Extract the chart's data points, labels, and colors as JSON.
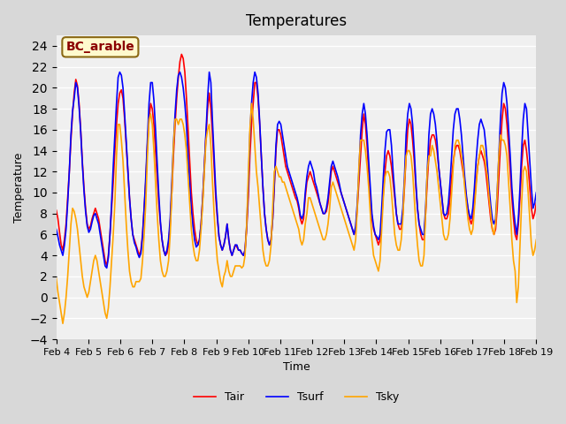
{
  "title": "Temperatures",
  "xlabel": "Time",
  "ylabel": "Temperature",
  "ylim": [
    -4,
    25
  ],
  "yticks": [
    -4,
    -2,
    0,
    2,
    4,
    6,
    8,
    10,
    12,
    14,
    16,
    18,
    20,
    22,
    24
  ],
  "annotation": "BC_arable",
  "legend_labels": [
    "Tair",
    "Tsurf",
    "Tsky"
  ],
  "line_colors": [
    "red",
    "blue",
    "orange"
  ],
  "bg_color": "#e8e8e8",
  "plot_bg": "#f0f0f0",
  "tair": [
    8.3,
    7.5,
    6.2,
    5.0,
    4.5,
    5.5,
    7.0,
    9.5,
    12.0,
    15.0,
    17.5,
    19.5,
    20.8,
    20.2,
    18.5,
    16.0,
    13.0,
    10.5,
    8.5,
    7.0,
    6.5,
    6.8,
    7.5,
    8.0,
    8.5,
    8.0,
    7.5,
    6.5,
    5.5,
    4.5,
    3.5,
    3.0,
    4.0,
    6.0,
    8.5,
    11.0,
    14.0,
    16.5,
    18.5,
    19.5,
    19.8,
    19.0,
    17.0,
    14.5,
    12.0,
    9.5,
    7.5,
    6.0,
    5.5,
    5.0,
    4.5,
    4.0,
    4.5,
    6.0,
    8.5,
    11.0,
    14.5,
    17.0,
    18.5,
    18.0,
    16.5,
    14.0,
    11.5,
    9.0,
    7.0,
    5.5,
    4.5,
    4.0,
    4.2,
    5.0,
    7.0,
    10.0,
    13.5,
    16.5,
    19.0,
    21.0,
    22.5,
    23.2,
    22.8,
    21.5,
    19.0,
    16.0,
    13.0,
    10.0,
    8.0,
    6.5,
    5.5,
    5.0,
    5.5,
    7.0,
    9.5,
    12.5,
    15.5,
    18.0,
    19.5,
    18.0,
    15.5,
    12.5,
    9.5,
    7.5,
    5.8,
    5.0,
    4.5,
    5.0,
    5.8,
    7.0,
    5.5,
    4.5,
    4.0,
    4.5,
    5.0,
    4.8,
    4.5,
    4.5,
    4.2,
    4.0,
    4.5,
    6.5,
    9.5,
    13.5,
    16.5,
    18.5,
    20.5,
    20.5,
    19.0,
    16.5,
    13.5,
    10.5,
    8.0,
    6.5,
    5.5,
    5.0,
    5.5,
    7.5,
    10.5,
    14.0,
    16.0,
    16.0,
    15.5,
    14.5,
    13.5,
    12.5,
    12.0,
    11.5,
    11.0,
    10.5,
    10.0,
    9.5,
    9.2,
    8.5,
    7.5,
    7.0,
    7.5,
    9.5,
    11.0,
    11.5,
    12.0,
    11.5,
    11.0,
    10.5,
    10.0,
    9.5,
    9.0,
    8.5,
    8.0,
    8.0,
    8.2,
    9.0,
    10.5,
    12.0,
    12.5,
    12.0,
    11.5,
    11.0,
    10.5,
    10.0,
    9.5,
    9.0,
    8.5,
    8.0,
    7.5,
    7.0,
    6.5,
    6.0,
    6.5,
    8.5,
    11.0,
    13.5,
    16.0,
    17.5,
    16.5,
    14.5,
    12.0,
    9.5,
    7.5,
    6.5,
    6.0,
    5.5,
    5.0,
    5.5,
    7.5,
    10.0,
    12.0,
    13.5,
    14.0,
    13.5,
    12.5,
    11.0,
    9.5,
    8.0,
    7.0,
    6.5,
    6.5,
    8.0,
    10.5,
    13.5,
    16.0,
    17.0,
    16.5,
    15.0,
    13.0,
    10.5,
    8.5,
    7.0,
    6.0,
    5.5,
    5.5,
    8.0,
    11.0,
    13.5,
    15.0,
    15.5,
    15.5,
    15.0,
    14.0,
    12.5,
    11.0,
    9.5,
    8.0,
    7.5,
    7.5,
    8.0,
    9.5,
    11.5,
    13.0,
    14.0,
    14.5,
    14.5,
    14.0,
    13.0,
    12.0,
    11.0,
    9.5,
    8.5,
    7.5,
    7.0,
    7.5,
    9.0,
    11.0,
    12.5,
    13.5,
    14.0,
    13.5,
    13.0,
    12.0,
    10.5,
    9.0,
    7.5,
    6.5,
    6.0,
    6.5,
    8.5,
    11.5,
    14.5,
    17.0,
    18.5,
    18.0,
    16.5,
    14.5,
    12.0,
    9.5,
    7.5,
    6.0,
    5.5,
    7.0,
    9.5,
    12.5,
    14.5,
    15.0,
    14.0,
    12.5,
    10.5,
    8.5,
    7.5,
    8.0,
    9.0
  ],
  "tsurf": [
    6.5,
    5.8,
    5.0,
    4.5,
    4.0,
    5.0,
    6.5,
    9.0,
    12.0,
    15.5,
    17.8,
    19.0,
    20.5,
    20.0,
    18.2,
    15.8,
    12.8,
    10.2,
    8.2,
    6.8,
    6.2,
    6.5,
    7.2,
    7.8,
    8.0,
    7.5,
    7.0,
    6.0,
    5.0,
    4.0,
    3.0,
    2.8,
    3.8,
    6.0,
    9.0,
    12.5,
    15.5,
    18.5,
    21.0,
    21.5,
    21.2,
    20.0,
    17.5,
    14.8,
    12.0,
    9.5,
    7.5,
    6.0,
    5.2,
    4.8,
    4.2,
    3.8,
    4.2,
    5.8,
    8.5,
    11.5,
    15.0,
    18.5,
    20.5,
    20.5,
    18.8,
    16.0,
    12.8,
    9.8,
    7.2,
    5.5,
    4.5,
    4.0,
    4.5,
    5.5,
    7.5,
    11.0,
    14.5,
    17.5,
    19.8,
    21.2,
    21.5,
    21.0,
    20.0,
    18.5,
    16.5,
    13.5,
    11.0,
    8.5,
    6.8,
    5.5,
    4.8,
    5.0,
    5.5,
    7.0,
    9.5,
    12.5,
    15.8,
    19.0,
    21.5,
    20.5,
    16.8,
    13.5,
    10.2,
    7.8,
    5.8,
    5.0,
    4.5,
    5.0,
    5.8,
    7.0,
    5.5,
    4.5,
    4.0,
    4.5,
    5.0,
    5.0,
    4.5,
    4.5,
    4.2,
    4.0,
    4.5,
    6.8,
    10.5,
    15.5,
    18.5,
    20.5,
    21.5,
    21.0,
    19.5,
    16.8,
    13.5,
    10.5,
    8.0,
    6.5,
    5.5,
    5.0,
    5.5,
    7.5,
    10.8,
    14.5,
    16.5,
    16.8,
    16.5,
    15.5,
    14.5,
    13.5,
    12.5,
    12.0,
    11.5,
    11.0,
    10.5,
    10.0,
    9.5,
    8.8,
    7.8,
    7.5,
    8.0,
    10.0,
    11.5,
    12.5,
    13.0,
    12.5,
    12.0,
    11.0,
    10.5,
    9.8,
    9.0,
    8.5,
    8.0,
    8.0,
    8.5,
    9.5,
    11.0,
    12.5,
    13.0,
    12.5,
    12.0,
    11.5,
    10.8,
    10.0,
    9.5,
    9.0,
    8.5,
    8.0,
    7.5,
    7.0,
    6.5,
    6.0,
    6.8,
    9.0,
    12.0,
    15.5,
    17.5,
    18.5,
    17.5,
    15.5,
    13.0,
    10.5,
    8.0,
    6.8,
    6.0,
    5.8,
    5.5,
    6.0,
    8.5,
    11.5,
    14.0,
    15.8,
    16.0,
    16.0,
    14.5,
    12.0,
    10.0,
    8.0,
    7.0,
    7.0,
    7.0,
    8.5,
    11.5,
    15.5,
    17.5,
    18.5,
    18.0,
    16.5,
    14.0,
    11.0,
    8.5,
    7.0,
    6.5,
    6.0,
    6.0,
    8.5,
    12.0,
    15.5,
    17.5,
    18.0,
    17.5,
    16.5,
    14.8,
    12.5,
    11.0,
    9.5,
    8.0,
    7.8,
    8.0,
    9.0,
    11.0,
    13.5,
    16.0,
    17.5,
    18.0,
    18.0,
    17.0,
    15.5,
    13.5,
    11.5,
    9.8,
    8.5,
    7.8,
    7.5,
    8.5,
    10.5,
    13.0,
    15.0,
    16.5,
    17.0,
    16.5,
    16.0,
    14.5,
    12.5,
    10.5,
    8.8,
    7.5,
    7.0,
    7.5,
    10.0,
    13.5,
    17.0,
    19.5,
    20.5,
    20.0,
    18.5,
    16.0,
    13.5,
    10.5,
    8.5,
    7.0,
    6.0,
    7.5,
    10.5,
    14.0,
    17.0,
    18.5,
    18.0,
    15.5,
    13.0,
    10.5,
    8.5,
    9.0,
    10.0
  ],
  "tsky": [
    1.8,
    0.5,
    -0.5,
    -1.5,
    -2.5,
    -1.5,
    0.0,
    2.0,
    4.5,
    7.0,
    8.5,
    8.2,
    7.5,
    6.5,
    5.0,
    3.5,
    2.0,
    1.0,
    0.5,
    0.0,
    0.5,
    1.5,
    2.5,
    3.5,
    4.0,
    3.5,
    2.5,
    1.5,
    0.5,
    -0.5,
    -1.5,
    -2.0,
    -1.0,
    1.0,
    3.5,
    6.0,
    9.0,
    13.5,
    16.5,
    16.5,
    15.0,
    13.0,
    10.0,
    7.0,
    4.5,
    2.5,
    1.5,
    1.0,
    1.0,
    1.5,
    1.5,
    1.5,
    1.8,
    3.5,
    6.0,
    9.0,
    13.5,
    17.0,
    17.5,
    16.5,
    14.0,
    11.0,
    8.0,
    5.5,
    3.5,
    2.5,
    2.0,
    2.0,
    2.5,
    3.5,
    6.0,
    10.0,
    14.5,
    17.0,
    17.0,
    16.5,
    17.0,
    17.0,
    16.5,
    15.5,
    14.0,
    11.5,
    9.0,
    6.5,
    5.0,
    4.0,
    3.5,
    3.5,
    4.5,
    6.5,
    9.0,
    12.0,
    15.0,
    16.0,
    16.5,
    14.5,
    11.0,
    8.0,
    5.5,
    3.5,
    2.5,
    1.5,
    1.0,
    2.0,
    2.5,
    3.5,
    2.5,
    2.0,
    2.0,
    2.5,
    3.0,
    3.0,
    3.0,
    3.0,
    2.8,
    3.0,
    4.0,
    7.0,
    11.5,
    16.0,
    18.5,
    17.0,
    14.5,
    12.0,
    10.5,
    8.5,
    6.5,
    4.5,
    3.5,
    3.0,
    3.0,
    3.5,
    5.0,
    8.5,
    12.0,
    12.5,
    12.0,
    11.5,
    11.5,
    11.0,
    11.0,
    10.5,
    10.0,
    9.5,
    9.0,
    8.5,
    8.0,
    7.5,
    7.0,
    6.5,
    5.5,
    5.0,
    5.5,
    7.0,
    8.0,
    9.5,
    9.5,
    9.0,
    8.5,
    8.0,
    7.5,
    7.0,
    6.5,
    6.0,
    5.5,
    5.5,
    6.0,
    7.0,
    8.5,
    10.5,
    11.0,
    10.5,
    10.0,
    9.5,
    9.0,
    8.5,
    8.0,
    7.5,
    7.0,
    6.5,
    6.0,
    5.5,
    5.0,
    4.5,
    5.5,
    8.5,
    12.5,
    15.0,
    15.0,
    15.0,
    14.0,
    12.5,
    10.5,
    8.0,
    5.5,
    4.0,
    3.5,
    3.0,
    2.5,
    3.5,
    6.5,
    9.5,
    11.5,
    12.0,
    12.0,
    11.5,
    10.0,
    8.0,
    6.0,
    5.0,
    4.5,
    4.5,
    5.5,
    7.5,
    11.0,
    13.5,
    14.0,
    14.0,
    13.5,
    12.0,
    9.5,
    7.0,
    5.0,
    3.5,
    3.0,
    3.0,
    4.0,
    8.0,
    12.0,
    13.5,
    13.5,
    14.5,
    14.0,
    13.0,
    12.0,
    10.5,
    9.0,
    7.5,
    6.0,
    5.5,
    5.5,
    6.0,
    7.5,
    10.0,
    12.5,
    14.5,
    15.0,
    15.0,
    14.5,
    13.5,
    12.5,
    10.5,
    9.0,
    7.5,
    6.5,
    6.0,
    6.5,
    8.5,
    10.5,
    12.5,
    13.5,
    14.5,
    14.5,
    14.0,
    12.5,
    11.5,
    9.5,
    8.0,
    6.5,
    6.0,
    7.0,
    10.0,
    13.5,
    15.5,
    15.0,
    15.0,
    14.5,
    13.5,
    11.0,
    8.5,
    5.5,
    3.5,
    2.5,
    -0.5,
    1.0,
    5.0,
    9.0,
    12.0,
    12.5,
    12.0,
    10.0,
    7.5,
    5.0,
    4.0,
    4.5,
    5.5
  ]
}
